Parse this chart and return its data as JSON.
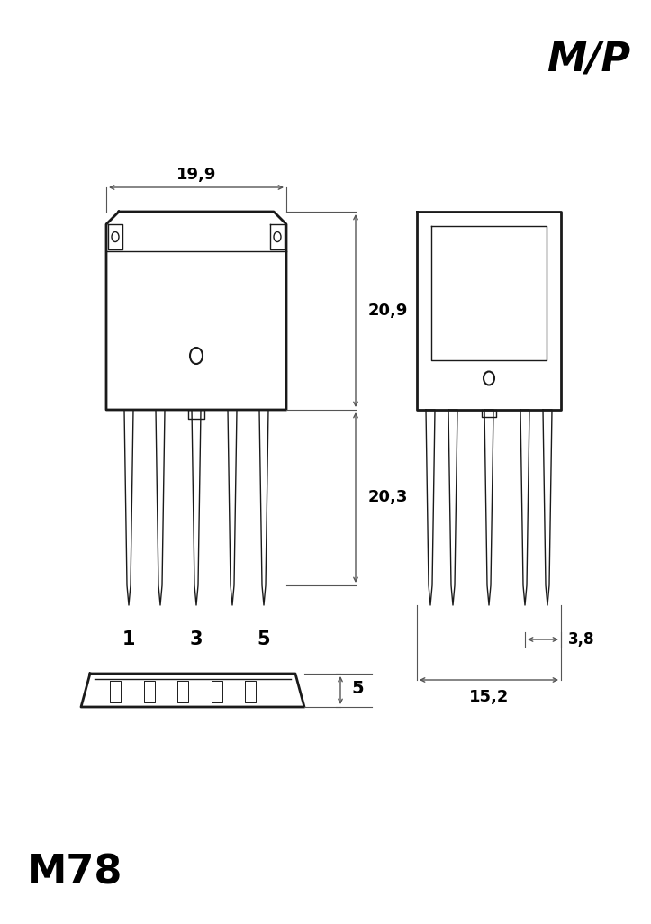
{
  "title_top_right": "M/P",
  "title_bottom_left": "M78",
  "bg_color": "#ffffff",
  "line_color": "#1a1a1a",
  "dim_color": "#555555",
  "text_color": "#000000",
  "dim_199": "19,9",
  "dim_209": "20,9",
  "dim_203": "20,3",
  "dim_38": "3,8",
  "dim_152": "15,2",
  "dim_5": "5",
  "pin_labels": [
    "1",
    "3",
    "5"
  ]
}
